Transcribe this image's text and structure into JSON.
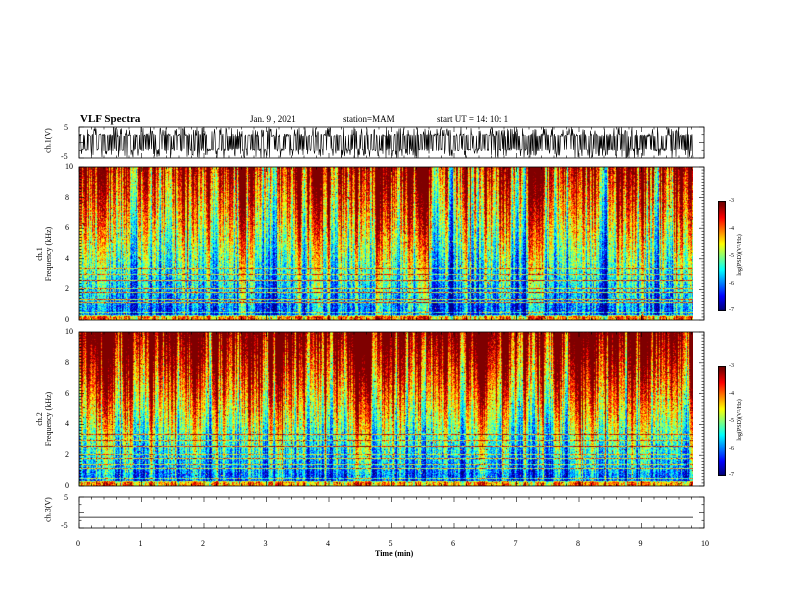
{
  "header": {
    "title": "VLF Spectra",
    "date": "Jan. 9 , 2021",
    "station": "station=MAM",
    "start": "start UT =   14: 10: 1"
  },
  "chart_data": [
    {
      "type": "line",
      "panel": "ch1-waveform",
      "ylabel": "ch.1(V)",
      "y_ticks": [
        "5",
        "-5"
      ],
      "ylim": [
        -5,
        5
      ],
      "xlim": [
        0,
        10
      ],
      "note": "dense impulsive waveform"
    },
    {
      "type": "heatmap",
      "panel": "ch1-spectrogram",
      "ylabel_top": "ch.1",
      "ylabel": "Frequency (kHz)",
      "y_ticks": [
        "0",
        "2",
        "4",
        "6",
        "8",
        "10"
      ],
      "ylim": [
        0,
        10
      ],
      "xlim": [
        0,
        9.85
      ],
      "colorbar": {
        "label": "log(PSD)(V²/Hz)",
        "ticks": [
          "-3",
          "-4",
          "-5",
          "-6",
          "-7"
        ],
        "range": [
          -7,
          -3
        ]
      }
    },
    {
      "type": "heatmap",
      "panel": "ch2-spectrogram",
      "ylabel_top": "ch.2",
      "ylabel": "Frequency (kHz)",
      "y_ticks": [
        "0",
        "2",
        "4",
        "6",
        "8",
        "10"
      ],
      "ylim": [
        0,
        10
      ],
      "xlim": [
        0,
        9.85
      ],
      "colorbar": {
        "label": "log(PSD)(V²/Hz)",
        "ticks": [
          "-3",
          "-4",
          "-5",
          "-6",
          "-7"
        ],
        "range": [
          -7,
          -3
        ]
      }
    },
    {
      "type": "line",
      "panel": "ch3-waveform",
      "ylabel": "ch.3(V)",
      "y_ticks": [
        "5",
        "-5"
      ],
      "ylim": [
        -5,
        5
      ],
      "xlim": [
        0,
        9.85
      ],
      "constant_value": -1.5
    }
  ],
  "x_axis": {
    "label": "Time (min)",
    "ticks": [
      "0",
      "1",
      "2",
      "3",
      "4",
      "5",
      "6",
      "7",
      "8",
      "9",
      "10"
    ]
  }
}
